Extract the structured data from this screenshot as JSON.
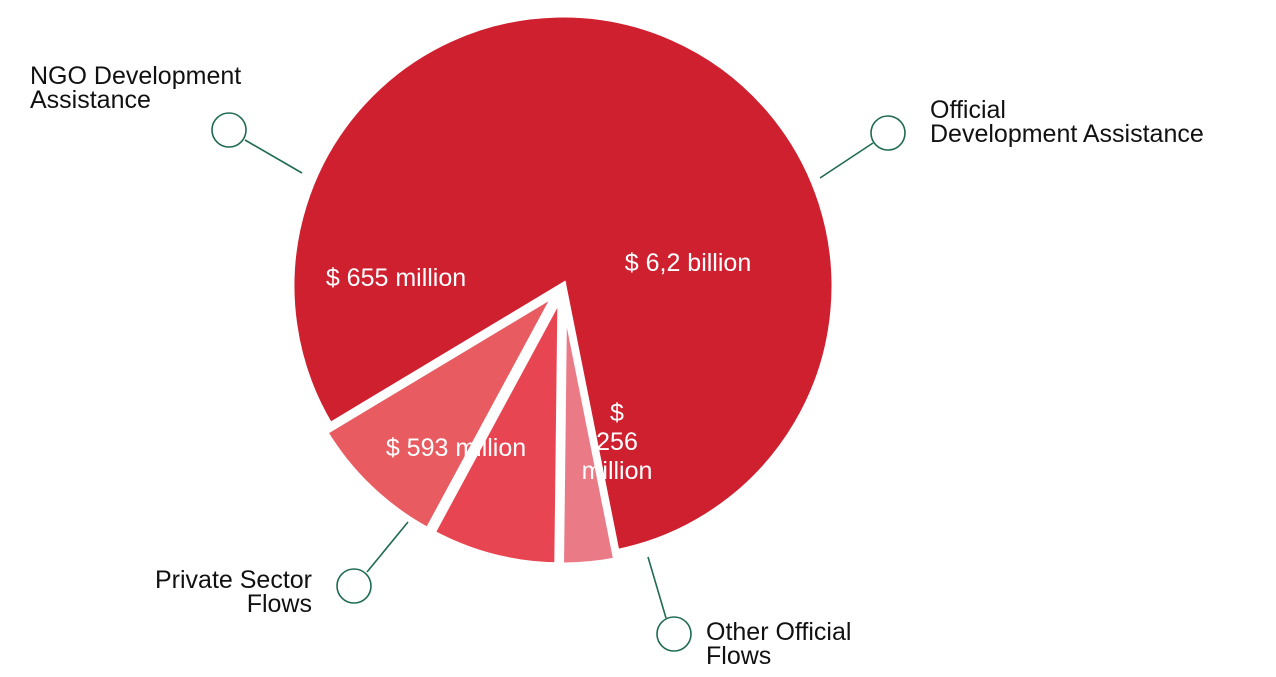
{
  "chart_data": {
    "type": "pie",
    "title": "",
    "unit": "USD",
    "slices": [
      {
        "name": "Official Development Assistance",
        "label_lines": [
          "Official",
          "Development Assistance"
        ],
        "value": 6200,
        "value_label_lines": [
          "$ 6,2 billion"
        ],
        "color": "#cf2030"
      },
      {
        "name": "Other Official Flows",
        "label_lines": [
          "Other Official",
          "Flows"
        ],
        "value": 256,
        "value_label_lines": [
          "$",
          "256",
          "million"
        ],
        "color": "#ea7a86"
      },
      {
        "name": "Private Sector Flows",
        "label_lines": [
          "Private Sector",
          "Flows"
        ],
        "value": 593,
        "value_label_lines": [
          "$ 593 million"
        ],
        "color": "#e84552"
      },
      {
        "name": "NGO Development Assistance",
        "label_lines": [
          "NGO Development",
          "Assistance"
        ],
        "value": 655,
        "value_label_lines": [
          "$ 655 million"
        ],
        "color": "#e85c61"
      }
    ],
    "legend": "none"
  }
}
